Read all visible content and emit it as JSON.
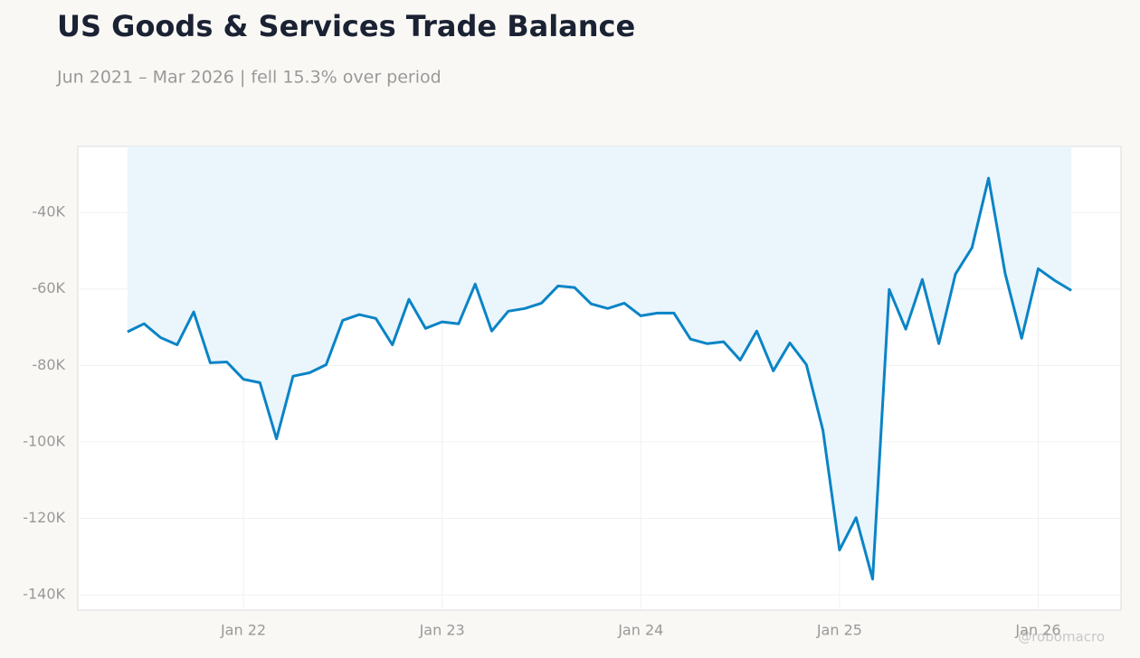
{
  "chart_data": {
    "type": "line",
    "title": "US Goods & Services Trade Balance",
    "subtitle": "Jun 2021 – Mar 2026 | fell 15.3% over period",
    "watermark": "@robomacro",
    "x": [
      "2021-06",
      "2021-07",
      "2021-08",
      "2021-09",
      "2021-10",
      "2021-11",
      "2021-12",
      "2022-01",
      "2022-02",
      "2022-03",
      "2022-04",
      "2022-05",
      "2022-06",
      "2022-07",
      "2022-08",
      "2022-09",
      "2022-10",
      "2022-11",
      "2022-12",
      "2023-01",
      "2023-02",
      "2023-03",
      "2023-04",
      "2023-05",
      "2023-06",
      "2023-07",
      "2023-08",
      "2023-09",
      "2023-10",
      "2023-11",
      "2023-12",
      "2024-01",
      "2024-02",
      "2024-03",
      "2024-04",
      "2024-05",
      "2024-06",
      "2024-07",
      "2024-08",
      "2024-09",
      "2024-10",
      "2024-11",
      "2024-12",
      "2025-01",
      "2025-02",
      "2025-03",
      "2025-04",
      "2025-05",
      "2025-06",
      "2025-07",
      "2025-08",
      "2025-09",
      "2025-10",
      "2025-11",
      "2025-12",
      "2026-01",
      "2026-02",
      "2026-03"
    ],
    "series": [
      {
        "name": "Trade balance",
        "color": "#0a84c6",
        "fill": "#e8f3fb",
        "values": [
          -71200,
          -69100,
          -72700,
          -74600,
          -66000,
          -79300,
          -79100,
          -83600,
          -84500,
          -99200,
          -82800,
          -81900,
          -79800,
          -68200,
          -66700,
          -67700,
          -74600,
          -62700,
          -70300,
          -68600,
          -69100,
          -58700,
          -71000,
          -65800,
          -65100,
          -63700,
          -59200,
          -59600,
          -63900,
          -65100,
          -63700,
          -67000,
          -66300,
          -66300,
          -73100,
          -74300,
          -73800,
          -78600,
          -71000,
          -81400,
          -74100,
          -79800,
          -97000,
          -128300,
          -119800,
          -135900,
          -60100,
          -70500,
          -57500,
          -74300,
          -56100,
          -49200,
          -31000,
          -55900,
          -72900,
          -54700,
          -57800,
          -60400
        ]
      }
    ],
    "xlim": [
      "2021-03",
      "2026-06"
    ],
    "xticks": [
      {
        "value": "2022-01",
        "label": "Jan 22"
      },
      {
        "value": "2023-01",
        "label": "Jan 23"
      },
      {
        "value": "2024-01",
        "label": "Jan 24"
      },
      {
        "value": "2025-01",
        "label": "Jan 25"
      },
      {
        "value": "2026-01",
        "label": "Jan 26"
      }
    ],
    "ylim": [
      -144000,
      -22700
    ],
    "yticks": [
      {
        "value": -40000,
        "label": "-40K"
      },
      {
        "value": -60000,
        "label": "-60K"
      },
      {
        "value": -80000,
        "label": "-80K"
      },
      {
        "value": -100000,
        "label": "-100K"
      },
      {
        "value": -120000,
        "label": "-120K"
      },
      {
        "value": -140000,
        "label": "-140K"
      }
    ],
    "grid": true
  }
}
